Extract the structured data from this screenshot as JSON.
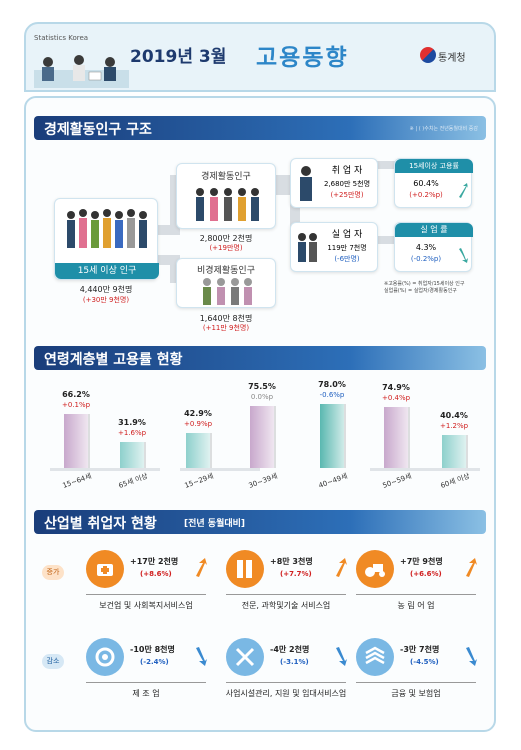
{
  "header": {
    "small": "Statistics Korea",
    "title_date": "2019년 3월",
    "title_main": "고용동향",
    "agency": "통계청"
  },
  "sec1": {
    "title": "경제활동인구 구조",
    "note": "※ | ( )수치는 전년동월대비 증감",
    "pop15": {
      "label": "15세 이상 인구",
      "value": "4,440만 9천명",
      "change": "(+30만 9천명)"
    },
    "active": {
      "label": "경제활동인구",
      "value": "2,800만 2천명",
      "change": "(+19만명)"
    },
    "inactive": {
      "label": "비경제활동인구",
      "value": "1,640만 8천명",
      "change": "(+11만 9천명)"
    },
    "employed": {
      "label": "취 업 자",
      "value": "2,680만 5천명",
      "change": "(+25만명)"
    },
    "unemployed": {
      "label": "실 업 자",
      "value": "119만 7천명",
      "change": "(-6만명)"
    },
    "emp_rate": {
      "label": "15세이상 고용률",
      "value": "60.4%",
      "change": "(+0.2%p)"
    },
    "unemp_rate": {
      "label": "실 업 률",
      "value": "4.3%",
      "change": "(-0.2%p)"
    },
    "formula1": "※고용률(%) = 취업자/15세이상 인구",
    "formula2": "실업률(%) = 실업자/경제활동인구"
  },
  "sec2": {
    "title": "연령계층별 고용률 현황"
  },
  "chart_data": {
    "type": "bar",
    "categories": [
      "15~64세",
      "65세 이상",
      "15~29세",
      "30~39세",
      "40~49세",
      "50~59세",
      "60세 이상"
    ],
    "values": [
      66.2,
      31.9,
      42.9,
      75.5,
      78.0,
      74.9,
      40.4
    ],
    "value_labels": [
      "66.2%",
      "31.9%",
      "42.9%",
      "75.5%",
      "78.0%",
      "74.9%",
      "40.4%"
    ],
    "changes": [
      "+0.1%p",
      "+1.6%p",
      "+0.9%p",
      "0.0%p",
      "-0.6%p",
      "+0.4%p",
      "+1.2%p"
    ],
    "change_colors": [
      "#d02020",
      "#d02020",
      "#d02020",
      "#888888",
      "#2060c0",
      "#d02020",
      "#d02020"
    ],
    "bar_colors": [
      "#c8a8cc",
      "#8ed0cc",
      "#8ed0cc",
      "#c8a8cc",
      "#5ab8b0",
      "#c8a8cc",
      "#8ed0cc"
    ]
  },
  "sec3": {
    "title": "산업별 취업자 현황",
    "title_sub": "[전년 동월대비]",
    "increase_tag": "증가",
    "decrease_tag": "감소",
    "increase": [
      {
        "value": "+17만 2천명",
        "change": "(+8.6%)",
        "name": "보건업 및 사회복지서비스업",
        "icon": "health-icon"
      },
      {
        "value": "+8만 3천명",
        "change": "(+7.7%)",
        "name": "전문, 과학및기술 서비스업",
        "icon": "science-icon"
      },
      {
        "value": "+7만 9천명",
        "change": "(+6.6%)",
        "name": "농 림 어 업",
        "icon": "farm-icon"
      }
    ],
    "decrease": [
      {
        "value": "-10만 8천명",
        "change": "(-2.4%)",
        "name": "제 조 업",
        "icon": "gear-icon"
      },
      {
        "value": "-4만 2천명",
        "change": "(-3.1%)",
        "name": "사업시설관리, 지원 및 임대서비스업",
        "icon": "tools-icon"
      },
      {
        "value": "-3만 7천명",
        "change": "(-4.5%)",
        "name": "금융 및 보험업",
        "icon": "finance-icon"
      }
    ]
  },
  "colors": {
    "navy": "#1a3d7a",
    "teal": "#1f8fa8",
    "orange": "#f08a24",
    "lightblue": "#7ab8e4",
    "red": "#d02020",
    "blue": "#2060c0"
  }
}
